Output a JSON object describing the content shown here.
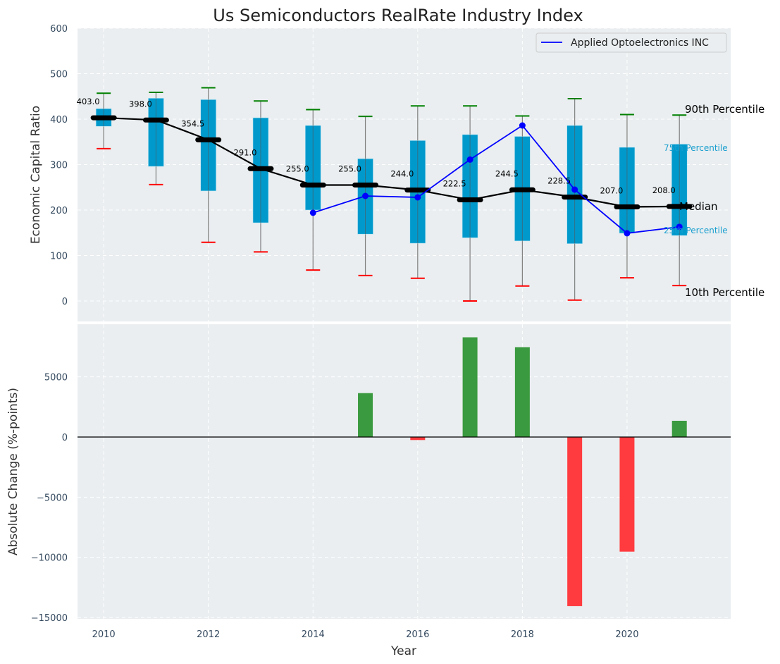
{
  "chart_data": [
    {
      "type": "box",
      "title": "Us Semiconductors RealRate Industry Index",
      "xlabel": "",
      "ylabel": "Economic Capital Ratio",
      "ylim": [
        -50,
        600
      ],
      "yticks": [
        0,
        100,
        200,
        300,
        400,
        500,
        600
      ],
      "grid": true,
      "years": [
        2010,
        2011,
        2012,
        2013,
        2014,
        2015,
        2016,
        2017,
        2018,
        2019,
        2020,
        2021
      ],
      "p90": [
        457,
        459,
        469,
        440,
        421,
        406,
        429,
        429,
        407,
        445,
        410,
        409
      ],
      "p75": [
        423,
        446,
        443,
        403,
        386,
        313,
        353,
        366,
        362,
        386,
        338,
        345
      ],
      "median": [
        403.0,
        398.0,
        354.5,
        291.0,
        255.0,
        255.0,
        244.0,
        222.5,
        244.5,
        228.5,
        207.0,
        208.0
      ],
      "median_labels": [
        "403.0",
        "398.0",
        "354.5",
        "291.0",
        "255.0",
        "255.0",
        "244.0",
        "222.5",
        "244.5",
        "228.5",
        "207.0",
        "208.0"
      ],
      "p25": [
        384,
        296,
        242,
        172,
        200,
        147,
        127,
        139,
        132,
        126,
        149,
        144
      ],
      "p10": [
        335,
        256,
        129,
        108,
        68,
        56,
        50,
        0,
        33,
        2,
        51,
        34
      ],
      "company": {
        "name": "Applied Optoelectronics INC",
        "years": [
          2014,
          2015,
          2016,
          2017,
          2018,
          2019,
          2020,
          2021
        ],
        "values": [
          194,
          231,
          228,
          311,
          386,
          245,
          149,
          163
        ],
        "color": "#0000ff"
      },
      "legend": {
        "entries": [
          "Applied Optoelectronics INC"
        ],
        "position": "top-right"
      },
      "annotations": {
        "p90": "90th Percentile",
        "p75": "75th Percentile",
        "median": "Median",
        "p25": "25th Percentile",
        "p10": "10th Percentile"
      },
      "colors": {
        "box": "#0099cc",
        "p90_cap": "#008000",
        "p10_cap": "#ff0000",
        "median": "#000000",
        "whisker": "#808080",
        "background": "#eaeef0"
      }
    },
    {
      "type": "bar",
      "xlabel": "Year",
      "ylabel": "Absolute Change (%-points)",
      "ylim": [
        -15200,
        8500
      ],
      "yticks": [
        -15000,
        -10000,
        -5000,
        0,
        5000
      ],
      "xticks": [
        2010,
        2012,
        2014,
        2016,
        2018,
        2020
      ],
      "xlim": [
        2009.5,
        2022
      ],
      "grid": true,
      "categories": [
        2015,
        2016,
        2017,
        2018,
        2019,
        2020,
        2021
      ],
      "values": [
        3650,
        -250,
        8290,
        7470,
        -14060,
        -9530,
        1350
      ],
      "colors": {
        "positive": "#3a9a3f",
        "negative": "#ff3b3f",
        "zero_line": "#000000"
      }
    }
  ]
}
